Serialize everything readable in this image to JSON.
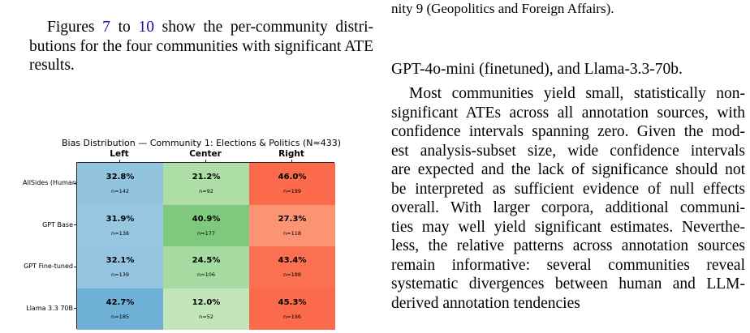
{
  "left_text": {
    "parts": [
      "Figures ",
      "7",
      " to ",
      "10",
      " show the per-community distri-",
      "butions for the four communities with significant",
      "ATE results."
    ]
  },
  "right_text": {
    "caption_tail": "nity 9 (Geopolitics and Foreign Affairs).",
    "models_line": "GPT-4o-mini (finetuned), and Llama-3.3-70b.",
    "para_lines": [
      "Most communities yield small, statistically non-",
      "significant ATEs across all annotation sources, with",
      "confidence intervals spanning zero. Given the mod-",
      "est analysis-subset size, wide confidence intervals",
      "are expected and the lack of significance should not",
      "be interpreted as sufficient evidence of null effects",
      "overall. With larger corpora, additional communi-",
      "ties may well yield significant estimates. Neverthe-",
      "less, the relative patterns across annotation sources",
      "remain informative: several communities reveal",
      "systematic divergences between human and LLM-",
      "derived annotation tendencies"
    ]
  },
  "chart_data": {
    "type": "heatmap",
    "title": "Bias Distribution — Community 1: Elections & Politics (N≈433)",
    "columns": [
      "Left",
      "Center",
      "Right"
    ],
    "rows": [
      "AllSides (Human)",
      "GPT Base",
      "GPT Fine-tuned",
      "Llama 3.3 70B"
    ],
    "cells": [
      [
        {
          "pct": "32.8%",
          "n": "n=142",
          "color": "#93c4df"
        },
        {
          "pct": "21.2%",
          "n": "n=92",
          "color": "#addea6"
        },
        {
          "pct": "46.0%",
          "n": "n=199",
          "color": "#fb6a4a"
        }
      ],
      [
        {
          "pct": "31.9%",
          "n": "n=138",
          "color": "#96c6e0"
        },
        {
          "pct": "40.9%",
          "n": "n=177",
          "color": "#7ec97e"
        },
        {
          "pct": "27.3%",
          "n": "n=118",
          "color": "#fc9474"
        }
      ],
      [
        {
          "pct": "32.1%",
          "n": "n=139",
          "color": "#95c5e0"
        },
        {
          "pct": "24.5%",
          "n": "n=106",
          "color": "#a5dba0"
        },
        {
          "pct": "43.4%",
          "n": "n=188",
          "color": "#fb7050"
        }
      ],
      [
        {
          "pct": "42.7%",
          "n": "n=185",
          "color": "#6fb0d6"
        },
        {
          "pct": "12.0%",
          "n": "n=52",
          "color": "#c2e6b9"
        },
        {
          "pct": "45.3%",
          "n": "n=196",
          "color": "#fb6b4b"
        }
      ]
    ]
  }
}
